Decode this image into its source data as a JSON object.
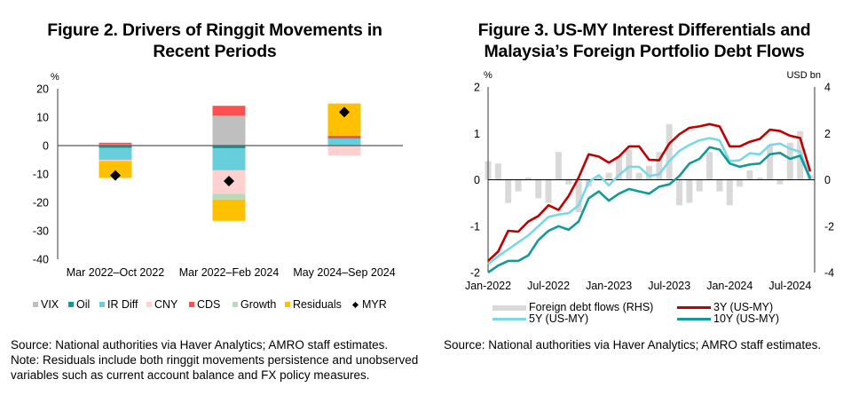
{
  "figures": [
    {
      "title_line1": "Figure 2. Drivers of Ringgit Movements in",
      "title_line2": "Recent Periods",
      "source": "Source: National authorities via Haver Analytics; AMRO staff estimates.",
      "note": "Note: Residuals include both ringgit movements persistence and unobserved variables such as current account balance and FX policy measures."
    },
    {
      "title_line1": "Figure 3. US-MY Interest Differentials and",
      "title_line2": "Malaysia’s Foreign Portfolio Debt Flows",
      "source": "Source: National authorities via Haver Analytics; AMRO staff estimates."
    }
  ],
  "chart_data": [
    {
      "type": "bar",
      "stacked": true,
      "title": "Figure 2. Drivers of Ringgit Movements in Recent Periods",
      "ylabel": "%",
      "ylim": [
        -40,
        20
      ],
      "yticks": [
        20,
        10,
        0,
        -10,
        -20,
        -30,
        -40
      ],
      "categories": [
        "Mar 2022–Oct 2022",
        "Mar 2022–Feb 2024",
        "May 2024–Sep 2024"
      ],
      "series": [
        {
          "name": "VIX",
          "color": "#bfbfbf",
          "values": [
            0.4,
            10.5,
            0.0
          ]
        },
        {
          "name": "Oil",
          "color": "#139a96",
          "values": [
            -0.8,
            -1.0,
            0.0
          ]
        },
        {
          "name": "IR Diff",
          "color": "#66cfdb",
          "values": [
            -4.2,
            -7.7,
            2.5
          ]
        },
        {
          "name": "CNY",
          "color": "#ffd0d0",
          "values": [
            -0.4,
            -8.3,
            -3.5
          ]
        },
        {
          "name": "CDS",
          "color": "#ff5050",
          "values": [
            0.6,
            3.5,
            1.0
          ]
        },
        {
          "name": "Growth",
          "color": "#b7dbbc",
          "values": [
            0.0,
            -2.0,
            0.0
          ]
        },
        {
          "name": "Residuals",
          "color": "#ffc000",
          "values": [
            -6.0,
            -7.5,
            11.3
          ]
        }
      ],
      "markers": {
        "name": "MYR",
        "color": "#000000",
        "values": [
          -10.5,
          -12.5,
          11.8
        ]
      },
      "legend": [
        "VIX",
        "Oil",
        "IR Diff",
        "CNY",
        "CDS",
        "Growth",
        "Residuals",
        "MYR"
      ],
      "legend_position": "bottom"
    },
    {
      "type": "line",
      "title": "Figure 3. US-MY Interest Differentials and Malaysia’s Foreign Portfolio Debt Flows",
      "ylabel_left": "%",
      "ylabel_right": "USD bn",
      "ylim_left": [
        -2,
        2
      ],
      "ylim_right": [
        -4,
        4
      ],
      "yticks_left": [
        2,
        1,
        0,
        -1,
        -2
      ],
      "yticks_right": [
        4,
        2,
        0,
        -2,
        -4
      ],
      "x_start": "Jan-2022",
      "x_end": "Sep-2024",
      "xtick_labels": [
        "Jan-2022",
        "Jul-2022",
        "Jan-2023",
        "Jul-2023",
        "Jan-2024",
        "Jul-2024"
      ],
      "months": [
        "Jan-2022",
        "Feb-2022",
        "Mar-2022",
        "Apr-2022",
        "May-2022",
        "Jun-2022",
        "Jul-2022",
        "Aug-2022",
        "Sep-2022",
        "Oct-2022",
        "Nov-2022",
        "Dec-2022",
        "Jan-2023",
        "Feb-2023",
        "Mar-2023",
        "Apr-2023",
        "May-2023",
        "Jun-2023",
        "Jul-2023",
        "Aug-2023",
        "Sep-2023",
        "Oct-2023",
        "Nov-2023",
        "Dec-2023",
        "Jan-2024",
        "Feb-2024",
        "Mar-2024",
        "Apr-2024",
        "May-2024",
        "Jun-2024",
        "Jul-2024",
        "Aug-2024",
        "Sep-2024"
      ],
      "series": [
        {
          "name": "Foreign debt flows (RHS)",
          "type": "bar",
          "axis": "right",
          "color": "#d9d9d9",
          "values": [
            0.8,
            0.7,
            -1.0,
            -0.5,
            0.1,
            -0.8,
            -1.0,
            1.2,
            -0.2,
            -1.4,
            -0.3,
            0.1,
            0.3,
            1.0,
            1.3,
            0.3,
            0.6,
            1.2,
            2.4,
            -1.1,
            -1.0,
            -0.5,
            1.2,
            -0.5,
            -1.1,
            -0.3,
            0.4,
            0.1,
            1.5,
            -0.2,
            1.6,
            2.1,
            0.2
          ]
        },
        {
          "name": "3Y (US-MY)",
          "type": "line",
          "axis": "left",
          "color": "#c00000",
          "values": [
            -1.75,
            -1.55,
            -1.1,
            -1.12,
            -0.9,
            -0.78,
            -0.55,
            -0.65,
            -0.35,
            0.05,
            0.55,
            0.5,
            0.37,
            0.5,
            0.72,
            0.72,
            0.43,
            0.42,
            0.78,
            0.98,
            1.12,
            1.15,
            1.2,
            1.15,
            0.72,
            0.72,
            0.82,
            0.88,
            1.08,
            1.05,
            0.95,
            0.9,
            0.18
          ]
        },
        {
          "name": "5Y (US-MY)",
          "type": "line",
          "axis": "left",
          "color": "#7ad8e6",
          "values": [
            -1.82,
            -1.65,
            -1.5,
            -1.35,
            -1.2,
            -1.0,
            -0.8,
            -0.75,
            -0.72,
            -0.55,
            -0.05,
            0.1,
            -0.12,
            0.1,
            0.28,
            0.28,
            0.08,
            0.12,
            0.4,
            0.62,
            0.75,
            0.85,
            0.9,
            0.85,
            0.4,
            0.42,
            0.57,
            0.55,
            0.75,
            0.78,
            0.67,
            0.6,
            0.05
          ]
        },
        {
          "name": "10Y (US-MY)",
          "type": "line",
          "axis": "left",
          "color": "#139a96",
          "values": [
            -2.0,
            -1.85,
            -1.75,
            -1.75,
            -1.63,
            -1.3,
            -1.1,
            -1.0,
            -1.08,
            -0.9,
            -0.4,
            -0.25,
            -0.45,
            -0.3,
            -0.2,
            -0.25,
            -0.3,
            -0.15,
            -0.1,
            0.08,
            0.35,
            0.45,
            0.7,
            0.65,
            0.35,
            0.28,
            0.33,
            0.35,
            0.55,
            0.58,
            0.45,
            0.52,
            0.02
          ]
        }
      ],
      "legend": [
        "Foreign debt flows (RHS)",
        "3Y (US-MY)",
        "5Y (US-MY)",
        "10Y (US-MY)"
      ],
      "legend_position": "bottom"
    }
  ]
}
